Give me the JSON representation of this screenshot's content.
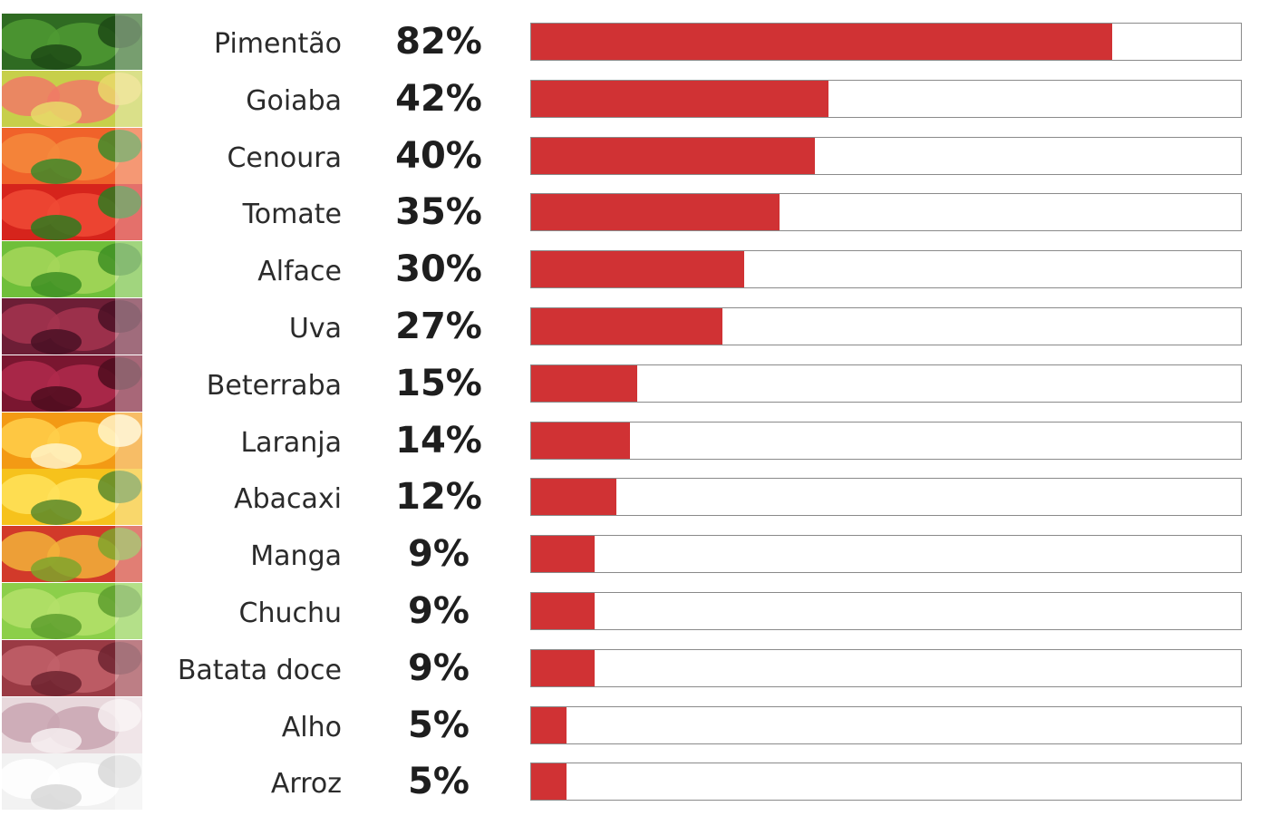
{
  "chart_data": {
    "type": "bar",
    "orientation": "horizontal",
    "categories": [
      "Pimentão",
      "Goiaba",
      "Cenoura",
      "Tomate",
      "Alface",
      "Uva",
      "Beterraba",
      "Laranja",
      "Abacaxi",
      "Manga",
      "Chuchu",
      "Batata doce",
      "Alho",
      "Arroz"
    ],
    "values": [
      82,
      42,
      40,
      35,
      30,
      27,
      15,
      14,
      12,
      9,
      9,
      9,
      5,
      5
    ],
    "value_labels": [
      "82%",
      "42%",
      "40%",
      "35%",
      "30%",
      "27%",
      "15%",
      "14%",
      "12%",
      "9%",
      "9%",
      "9%",
      "5%",
      "5%"
    ],
    "xlim": [
      0,
      100
    ],
    "bar_color": "#d03234",
    "track_border_color": "#8a8a8a",
    "icons": [
      "green-pepper-icon",
      "guava-icon",
      "carrot-icon",
      "tomato-icon",
      "lettuce-icon",
      "grape-icon",
      "beet-icon",
      "orange-icon",
      "pineapple-icon",
      "mango-icon",
      "chayote-icon",
      "sweet-potato-icon",
      "garlic-icon",
      "rice-icon"
    ],
    "grid": false,
    "legend": "none"
  }
}
